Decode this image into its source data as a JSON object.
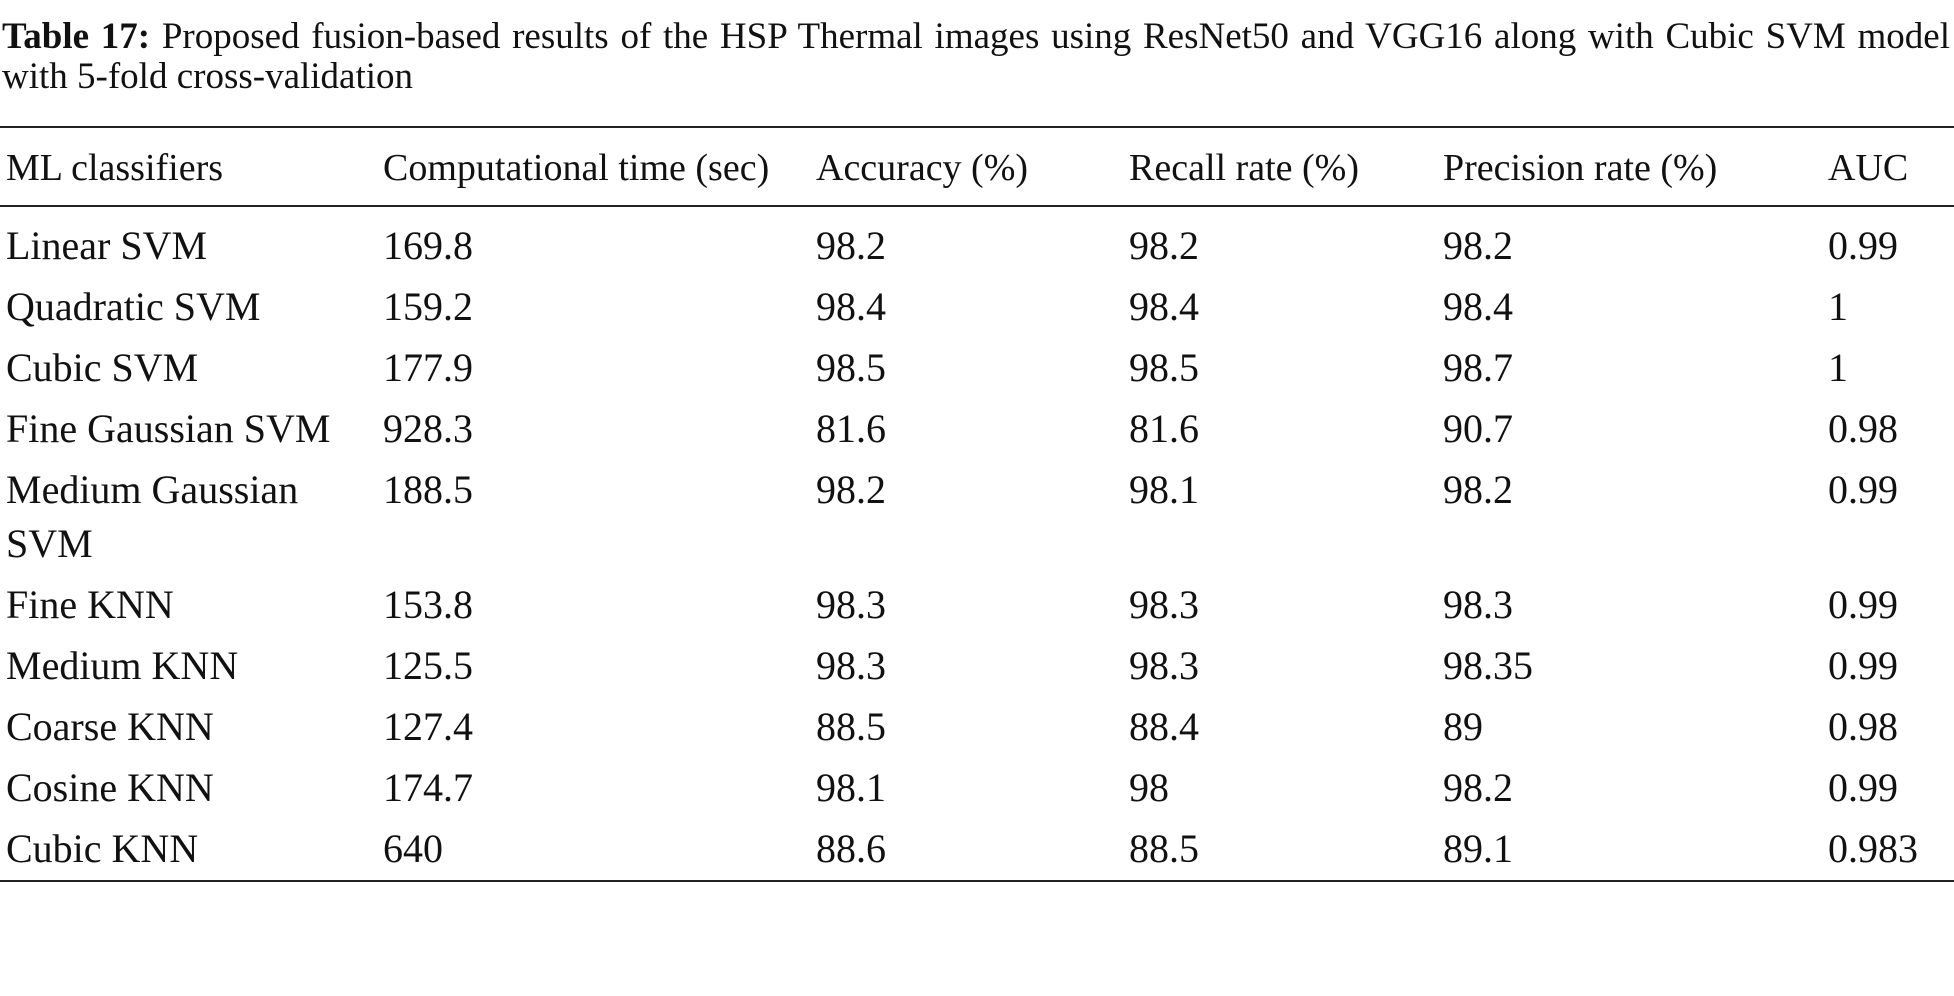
{
  "caption": {
    "label": "Table 17:",
    "text": "Proposed fusion-based results of the HSP Thermal images using ResNet50 and VGG16 along with Cubic SVM model with 5-fold cross-validation"
  },
  "table": {
    "header": [
      "ML classifiers",
      "Computational time (sec)",
      "Accuracy (%)",
      "Recall rate (%)",
      "Precision rate (%)",
      "AUC"
    ],
    "rows": [
      [
        "Linear SVM",
        "169.8",
        "98.2",
        "98.2",
        "98.2",
        "0.99"
      ],
      [
        "Quadratic SVM",
        "159.2",
        "98.4",
        "98.4",
        "98.4",
        "1"
      ],
      [
        "Cubic SVM",
        "177.9",
        "98.5",
        "98.5",
        "98.7",
        "1"
      ],
      [
        "Fine Gaussian SVM",
        "928.3",
        "81.6",
        "81.6",
        "90.7",
        "0.98"
      ],
      [
        "Medium Gaussian SVM",
        "188.5",
        "98.2",
        "98.1",
        "98.2",
        "0.99"
      ],
      [
        "Fine KNN",
        "153.8",
        "98.3",
        "98.3",
        "98.3",
        "0.99"
      ],
      [
        "Medium KNN",
        "125.5",
        "98.3",
        "98.3",
        "98.35",
        "0.99"
      ],
      [
        "Coarse KNN",
        "127.4",
        "88.5",
        "88.4",
        "89",
        "0.98"
      ],
      [
        "Cosine KNN",
        "174.7",
        "98.1",
        "98",
        "98.2",
        "0.99"
      ],
      [
        "Cubic KNN",
        "640",
        "88.6",
        "88.5",
        "89.1",
        "0.983"
      ]
    ]
  }
}
